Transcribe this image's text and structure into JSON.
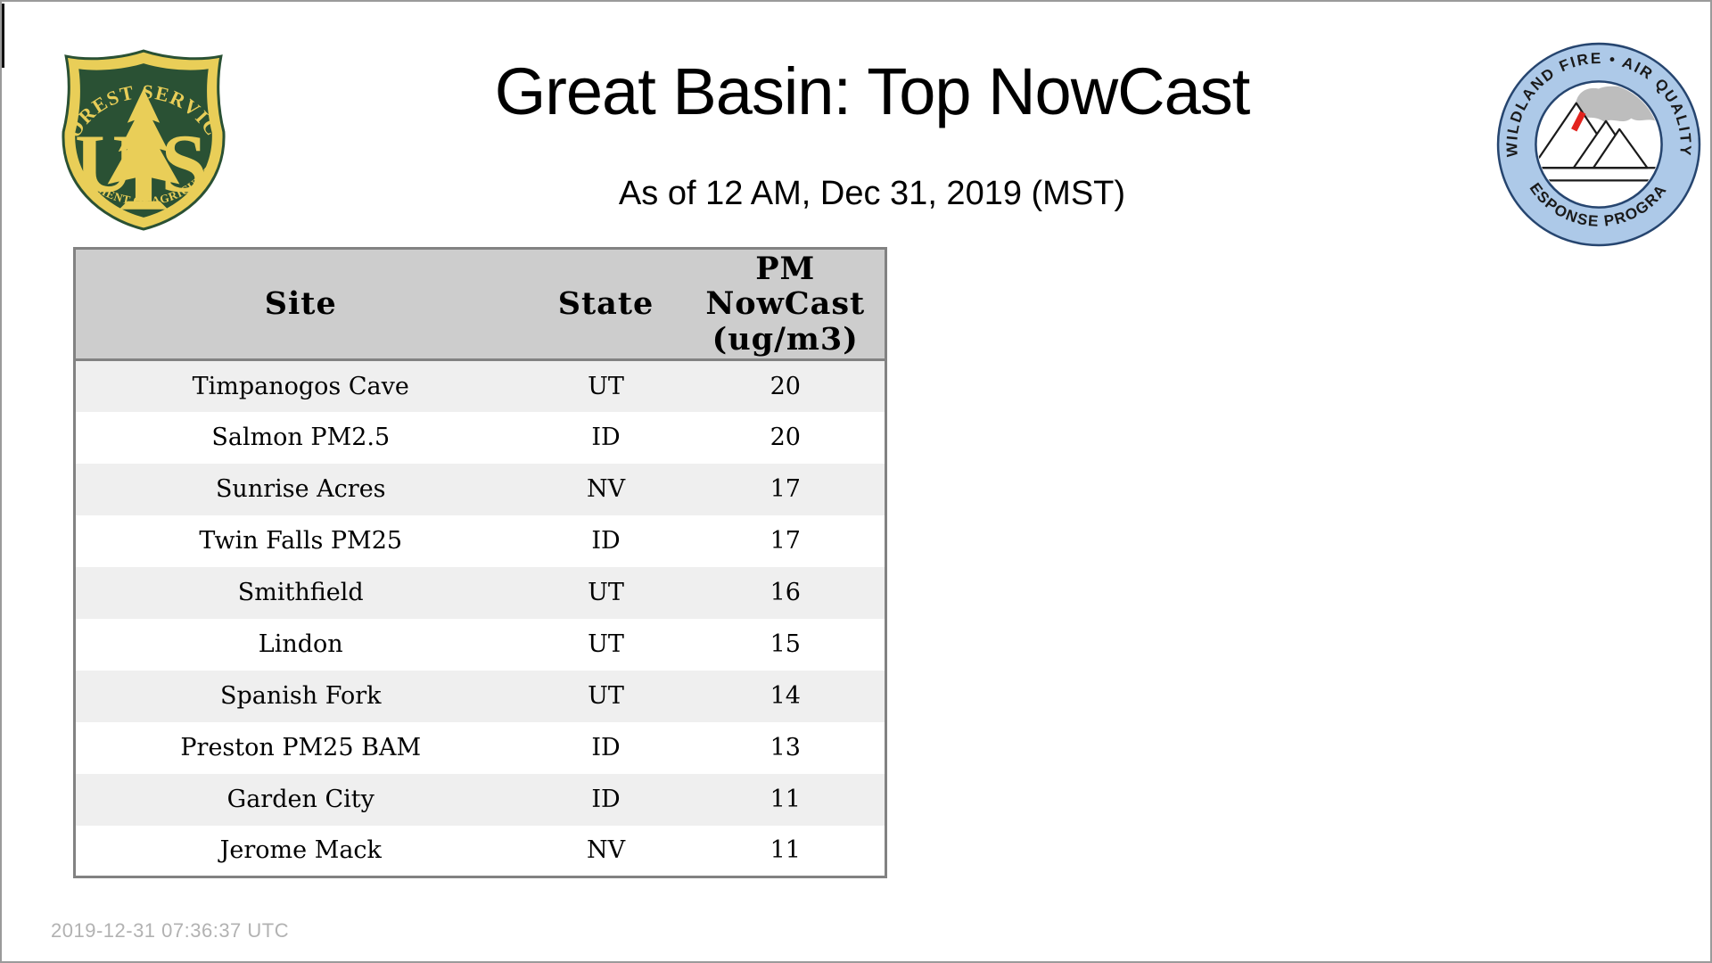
{
  "chart_data": {
    "type": "table",
    "title": "Great Basin: Top NowCast",
    "subtitle": "As of 12 AM, Dec 31, 2019 (MST)",
    "columns": [
      {
        "label": "Site"
      },
      {
        "label": "State"
      },
      {
        "label": "PM\nNowCast\n(ug/m3)"
      }
    ],
    "rows": [
      {
        "site": "Timpanogos Cave",
        "state": "UT",
        "pm": 20
      },
      {
        "site": "Salmon PM2.5",
        "state": "ID",
        "pm": 20
      },
      {
        "site": "Sunrise Acres",
        "state": "NV",
        "pm": 17
      },
      {
        "site": "Twin Falls PM25",
        "state": "ID",
        "pm": 17
      },
      {
        "site": "Smithfield",
        "state": "UT",
        "pm": 16
      },
      {
        "site": "Lindon",
        "state": "UT",
        "pm": 15
      },
      {
        "site": "Spanish Fork",
        "state": "UT",
        "pm": 14
      },
      {
        "site": "Preston PM25 BAM",
        "state": "ID",
        "pm": 13
      },
      {
        "site": "Garden City",
        "state": "ID",
        "pm": 11
      },
      {
        "site": "Jerome Mack",
        "state": "NV",
        "pm": 11
      }
    ],
    "layout": {
      "header_bg": "#cdcdcd",
      "row_odd_bg": "#efefef",
      "row_even_bg": "#ffffff",
      "border_color": "#828282"
    }
  },
  "footer": {
    "timestamp": "2019-12-31 07:36:37 UTC"
  },
  "logos": {
    "forest_service": {
      "top_arc": "FOREST SERVICE",
      "bottom_arc": "DEPARTMENT OF AGRICULTURE",
      "monogram_left": "U",
      "monogram_right": "S",
      "colors": {
        "green": "#2a5134",
        "gold": "#e9ce58"
      }
    },
    "air_quality": {
      "top_arc": "WILDLAND FIRE • AIR QUALITY",
      "bottom_arc": "RESPONSE PROGRAM",
      "colors": {
        "ring": "#adc9e8",
        "outline": "#26456f",
        "smoke": "#bdbdbd",
        "flame": "#e3231e",
        "text": "#1a1a1a"
      }
    }
  }
}
